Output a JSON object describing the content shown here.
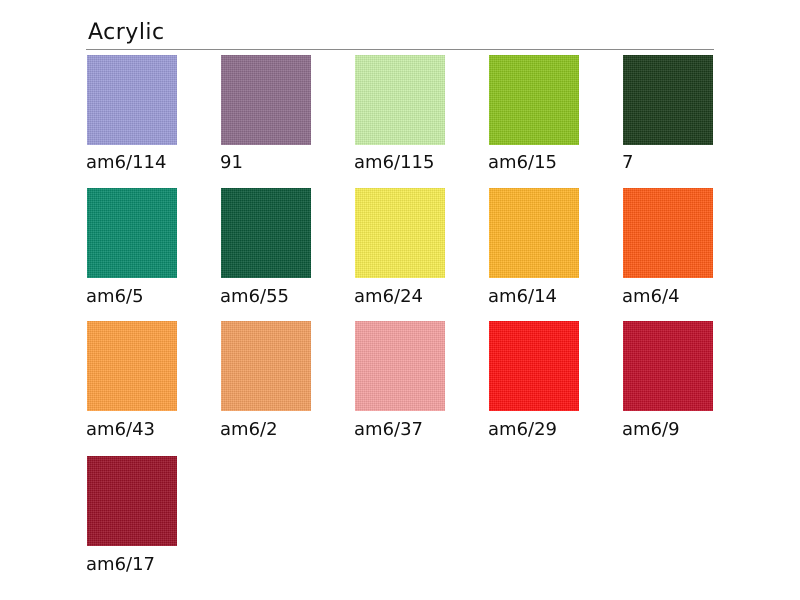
{
  "title": "Acrylic",
  "swatches": [
    {
      "code": "am6/114",
      "color": "#9c9cd8"
    },
    {
      "code": "91",
      "color": "#8e6e8c"
    },
    {
      "code": "am6/115",
      "color": "#c9efa9"
    },
    {
      "code": "am6/15",
      "color": "#8cc31f"
    },
    {
      "code": "7",
      "color": "#1b3c1b"
    },
    {
      "code": "am6/5",
      "color": "#0a8a6b"
    },
    {
      "code": "am6/55",
      "color": "#0c593a"
    },
    {
      "code": "am6/24",
      "color": "#f8ee52"
    },
    {
      "code": "am6/14",
      "color": "#ffb52a"
    },
    {
      "code": "am6/4",
      "color": "#ff5b16"
    },
    {
      "code": "am6/43",
      "color": "#ffa142"
    },
    {
      "code": "am6/2",
      "color": "#f3a062"
    },
    {
      "code": "am6/37",
      "color": "#f5a2a2"
    },
    {
      "code": "am6/29",
      "color": "#ff1212"
    },
    {
      "code": "am6/9",
      "color": "#bf0f2a"
    },
    {
      "code": "am6/17",
      "color": "#9a1128"
    }
  ]
}
